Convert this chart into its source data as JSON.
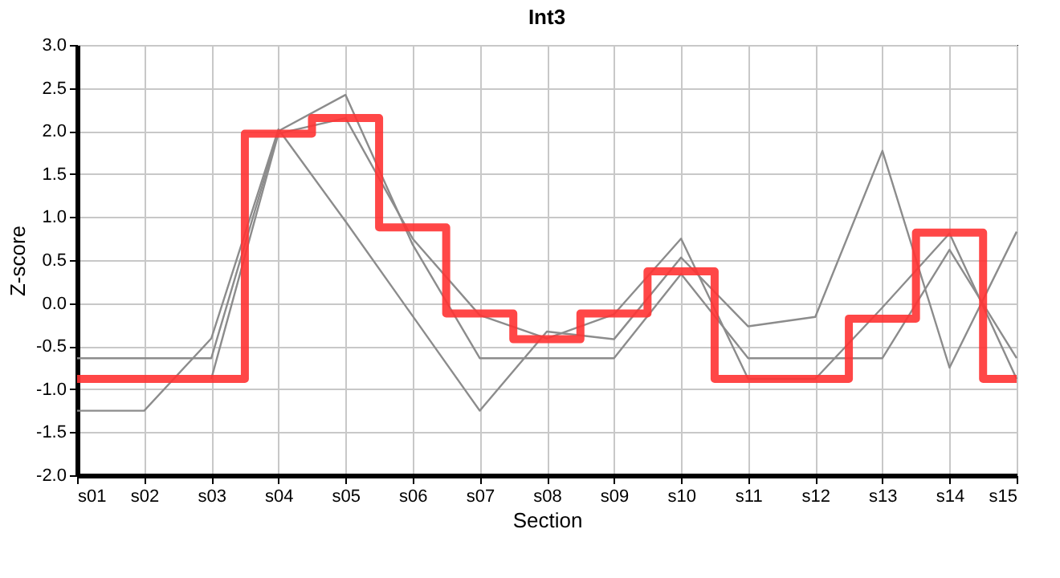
{
  "chart_data": {
    "type": "line",
    "title": "Int3",
    "xlabel": "Section",
    "ylabel": "Z-score",
    "categories": [
      "s01",
      "s02",
      "s03",
      "s04",
      "s05",
      "s06",
      "s07",
      "s08",
      "s09",
      "s10",
      "s11",
      "s12",
      "s13",
      "s14",
      "s15"
    ],
    "series": [
      {
        "color": "#8c8c8c",
        "values": [
          -1.25,
          -1.25,
          -0.41,
          2.02,
          0.95,
          -0.15,
          -1.25,
          -0.33,
          -0.42,
          0.53,
          -0.27,
          -0.16,
          1.77,
          -0.75,
          0.83
        ]
      },
      {
        "color": "#8c8c8c",
        "values": [
          -0.64,
          -0.64,
          -0.64,
          2.0,
          2.42,
          0.68,
          -0.64,
          -0.64,
          -0.64,
          0.34,
          -0.64,
          -0.64,
          -0.64,
          0.62,
          -0.64
        ]
      },
      {
        "color": "#8c8c8c",
        "values": [
          null,
          null,
          -0.88,
          1.97,
          2.15,
          0.75,
          -0.14,
          -0.41,
          -0.13,
          0.75,
          -0.88,
          -0.88,
          -0.05,
          0.81,
          -0.88
        ]
      },
      {
        "type": "step",
        "color": "#ff3333",
        "values": [
          -0.88,
          -0.88,
          -0.88,
          1.97,
          2.15,
          0.88,
          -0.12,
          -0.42,
          -0.12,
          0.37,
          -0.88,
          -0.88,
          -0.18,
          0.82,
          -0.88
        ]
      }
    ],
    "ylim": [
      -2.0,
      3.0
    ],
    "yticks": [
      {
        "value": -2,
        "label": "-2.0"
      },
      {
        "value": -1.5,
        "label": "-1.5"
      },
      {
        "value": -1,
        "label": "-1.0"
      },
      {
        "value": -0.5,
        "label": "-0.5"
      },
      {
        "value": 0,
        "label": "0.0"
      },
      {
        "value": 0.5,
        "label": "0.5"
      },
      {
        "value": 1,
        "label": "1.0"
      },
      {
        "value": 1.5,
        "label": "1.5"
      },
      {
        "value": 2,
        "label": "2.0"
      },
      {
        "value": 2.5,
        "label": "2.5"
      },
      {
        "value": 3,
        "label": "3.0"
      }
    ],
    "grid": true,
    "marker": "none",
    "line_style": "solid"
  }
}
